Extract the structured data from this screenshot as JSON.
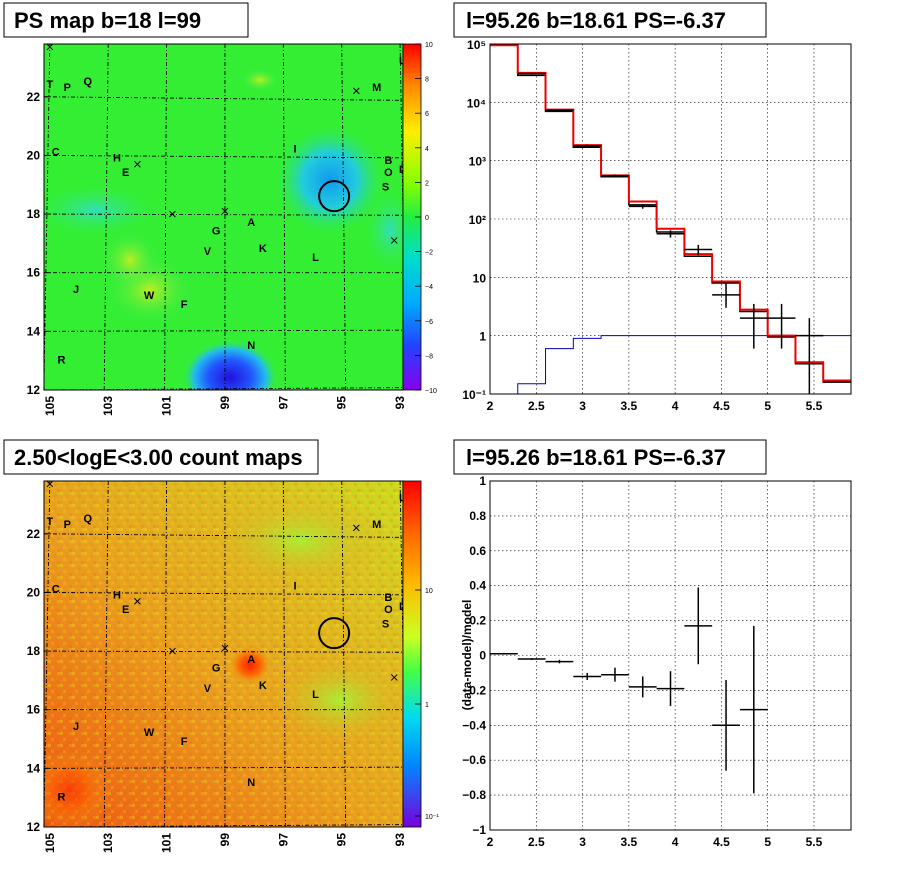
{
  "panels": {
    "ps_map": {
      "title": "PS map b=18 l=99",
      "x_ticks": [
        "105",
        "103",
        "101",
        "99",
        "97",
        "95",
        "93"
      ],
      "y_ticks": [
        "12",
        "14",
        "16",
        "18",
        "20",
        "22"
      ],
      "colorbar_ticks": [
        "10",
        "8",
        "6",
        "4",
        "2",
        "0",
        "−2",
        "−4",
        "−6",
        "−8",
        "−10"
      ],
      "colors": {
        "background": "#33ee33",
        "blue_region": "#22ccff",
        "deep_blue": "#2233ee",
        "yellow_patch": "#aaee22"
      }
    },
    "count_map": {
      "title": "2.50<logE<3.00 count maps",
      "x_ticks": [
        "105",
        "103",
        "101",
        "99",
        "97",
        "95",
        "93"
      ],
      "y_ticks": [
        "12",
        "14",
        "16",
        "18",
        "20",
        "22"
      ],
      "colorbar_ticks": [
        "10",
        "1",
        "10⁻¹"
      ],
      "colors": {
        "background": "#e8a820",
        "hot": "#ff3300",
        "cool": "#ccee22"
      }
    },
    "spectrum": {
      "title": "l=95.26 b=18.61 PS=-6.37",
      "x_ticks": [
        "2",
        "2.5",
        "3",
        "3.5",
        "4",
        "4.5",
        "5",
        "5.5"
      ],
      "y_ticks": [
        "10⁻¹",
        "1",
        "10",
        "10²",
        "10³",
        "10⁴",
        "10⁵"
      ]
    },
    "residual": {
      "title": "l=95.26 b=18.61 PS=-6.37",
      "ylabel": "(data-model)/model",
      "x_ticks": [
        "2",
        "2.5",
        "3",
        "3.5",
        "4",
        "4.5",
        "5",
        "5.5"
      ],
      "y_ticks": [
        "1",
        "0.8",
        "0.6",
        "0.4",
        "0.2",
        "0",
        "−0.2",
        "−0.4",
        "−0.6",
        "−0.8",
        "−1"
      ]
    }
  },
  "map_sources": [
    {
      "label": "T",
      "l": 105.0,
      "b": 22.3
    },
    {
      "label": "P",
      "l": 104.4,
      "b": 22.2
    },
    {
      "label": "Q",
      "l": 103.7,
      "b": 22.4
    },
    {
      "label": "M",
      "l": 93.8,
      "b": 22.2
    },
    {
      "label": "U",
      "l": 92.9,
      "b": 23.1
    },
    {
      "label": "C",
      "l": 104.8,
      "b": 20.0
    },
    {
      "label": "H",
      "l": 102.7,
      "b": 19.8
    },
    {
      "label": "E",
      "l": 102.4,
      "b": 19.3
    },
    {
      "label": "I",
      "l": 96.6,
      "b": 20.1
    },
    {
      "label": "B",
      "l": 93.4,
      "b": 19.7
    },
    {
      "label": "O",
      "l": 93.4,
      "b": 19.3
    },
    {
      "label": "D",
      "l": 92.9,
      "b": 19.4
    },
    {
      "label": "S",
      "l": 93.5,
      "b": 18.8
    },
    {
      "label": "A",
      "l": 98.1,
      "b": 17.6
    },
    {
      "label": "G",
      "l": 99.3,
      "b": 17.3
    },
    {
      "label": "K",
      "l": 97.7,
      "b": 16.7
    },
    {
      "label": "V",
      "l": 99.6,
      "b": 16.6
    },
    {
      "label": "L",
      "l": 95.9,
      "b": 16.4
    },
    {
      "label": "J",
      "l": 104.1,
      "b": 15.3
    },
    {
      "label": "W",
      "l": 101.6,
      "b": 15.1
    },
    {
      "label": "F",
      "l": 100.4,
      "b": 14.8
    },
    {
      "label": "N",
      "l": 98.1,
      "b": 13.4
    },
    {
      "label": "R",
      "l": 104.6,
      "b": 12.9
    }
  ],
  "map_crosses": [
    {
      "l": 105.0,
      "b": 23.7
    },
    {
      "l": 102.0,
      "b": 19.7
    },
    {
      "l": 100.8,
      "b": 18.0
    },
    {
      "l": 99.0,
      "b": 18.1
    },
    {
      "l": 93.2,
      "b": 17.1
    },
    {
      "l": 94.5,
      "b": 22.2
    }
  ],
  "circle": {
    "l": 95.26,
    "b": 18.61
  },
  "chart_data": [
    {
      "type": "line",
      "name": "spectrum",
      "title": "l=95.26 b=18.61 PS=-6.37",
      "xlim": [
        2.0,
        5.9
      ],
      "ylim": [
        0.1,
        100000
      ],
      "ylog": true,
      "grid": true,
      "model_red": {
        "edges": [
          2.0,
          2.3,
          2.6,
          2.9,
          3.2,
          3.5,
          3.8,
          4.1,
          4.4,
          4.7,
          5.0,
          5.3,
          5.6,
          5.9
        ],
        "values": [
          95000,
          32000,
          7500,
          1850,
          560,
          200,
          68,
          25,
          8.5,
          2.8,
          1.0,
          0.35,
          0.17
        ]
      },
      "model_black": {
        "edges": [
          2.0,
          2.3,
          2.6,
          2.9,
          3.2,
          3.5,
          3.8,
          4.1,
          4.4,
          4.7,
          5.0,
          5.3,
          5.6,
          5.9
        ],
        "values": [
          95000,
          29000,
          7000,
          1700,
          530,
          175,
          60,
          23,
          8.0,
          2.6,
          0.95,
          0.33,
          0.16
        ]
      },
      "blue_component": {
        "edges": [
          2.0,
          2.3,
          2.6,
          2.9,
          3.2,
          3.5,
          5.9
        ],
        "values": [
          0.1,
          0.15,
          0.6,
          0.9,
          1.0,
          1.0
        ]
      },
      "data_points": [
        {
          "x": 2.45,
          "y": 31000,
          "yerr_lo": 30000,
          "yerr_hi": 32000
        },
        {
          "x": 2.75,
          "y": 7300,
          "yerr_lo": 7100,
          "yerr_hi": 7500
        },
        {
          "x": 3.05,
          "y": 1800,
          "yerr_lo": 1700,
          "yerr_hi": 1900
        },
        {
          "x": 3.35,
          "y": 550,
          "yerr_lo": 520,
          "yerr_hi": 580
        },
        {
          "x": 3.65,
          "y": 165,
          "yerr_lo": 150,
          "yerr_hi": 180
        },
        {
          "x": 3.95,
          "y": 56,
          "yerr_lo": 48,
          "yerr_hi": 64
        },
        {
          "x": 4.25,
          "y": 30,
          "yerr_lo": 24,
          "yerr_hi": 36
        },
        {
          "x": 4.55,
          "y": 5,
          "yerr_lo": 3,
          "yerr_hi": 8
        },
        {
          "x": 4.85,
          "y": 2,
          "yerr_lo": 0.6,
          "yerr_hi": 3.5
        },
        {
          "x": 5.15,
          "y": 2,
          "yerr_lo": 0.6,
          "yerr_hi": 3.5
        },
        {
          "x": 5.45,
          "y": 1,
          "yerr_lo": 0.1,
          "yerr_hi": 2
        }
      ]
    },
    {
      "type": "scatter",
      "name": "residual",
      "title": "l=95.26 b=18.61 PS=-6.37",
      "ylabel": "(data-model)/model",
      "xlim": [
        2.0,
        5.9
      ],
      "ylim": [
        -1,
        1
      ],
      "grid": true,
      "points": [
        {
          "x": 2.15,
          "y": 0.01,
          "xerr": 0.15,
          "yerr": 0.005
        },
        {
          "x": 2.45,
          "y": -0.02,
          "xerr": 0.15,
          "yerr": 0.005
        },
        {
          "x": 2.75,
          "y": -0.035,
          "xerr": 0.15,
          "yerr": 0.01
        },
        {
          "x": 3.05,
          "y": -0.12,
          "xerr": 0.15,
          "yerr": 0.02
        },
        {
          "x": 3.35,
          "y": -0.11,
          "xerr": 0.15,
          "yerr": 0.04
        },
        {
          "x": 3.65,
          "y": -0.18,
          "xerr": 0.15,
          "yerr": 0.06
        },
        {
          "x": 3.95,
          "y": -0.19,
          "xerr": 0.15,
          "yerr": 0.1
        },
        {
          "x": 4.25,
          "y": 0.17,
          "xerr": 0.15,
          "yerr": 0.22
        },
        {
          "x": 4.55,
          "y": -0.4,
          "xerr": 0.15,
          "yerr": 0.26
        },
        {
          "x": 4.85,
          "y": -0.31,
          "xerr": 0.15,
          "yerr": 0.48
        }
      ]
    }
  ]
}
